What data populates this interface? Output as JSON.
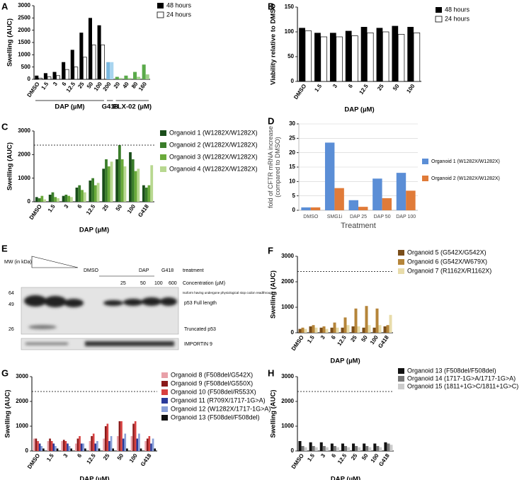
{
  "chart_data": [
    {
      "type": "bar",
      "panel": "A",
      "ylabel": "Swelling (AUC)",
      "groups": [
        {
          "label": "DAP (µM)",
          "categories": [
            "DMSO",
            "1.5",
            "3",
            "6",
            "12.5",
            "25",
            "50",
            "100"
          ]
        },
        {
          "label": "G418",
          "categories": [
            "200"
          ]
        },
        {
          "label": "ELX-02 (µM)",
          "categories": [
            "20",
            "40",
            "80",
            "160"
          ]
        }
      ],
      "series": [
        {
          "name": "48 hours",
          "color": "#000000",
          "values": [
            150,
            250,
            300,
            700,
            1200,
            1900,
            2500,
            2200,
            700,
            100,
            150,
            300,
            600
          ],
          "point_colors": [
            "#000000",
            "#000000",
            "#000000",
            "#000000",
            "#000000",
            "#000000",
            "#000000",
            "#000000",
            "#7ab8e0",
            "#5aaa4a",
            "#5aaa4a",
            "#5aaa4a",
            "#5aaa4a"
          ]
        },
        {
          "name": "24 hours",
          "color": "#ffffff",
          "values": [
            50,
            100,
            150,
            400,
            500,
            900,
            1400,
            1400,
            700,
            50,
            50,
            100,
            200
          ],
          "point_colors": [
            "#ffffff",
            "#ffffff",
            "#ffffff",
            "#ffffff",
            "#ffffff",
            "#ffffff",
            "#ffffff",
            "#ffffff",
            "#a8d4ef",
            "#9fd08a",
            "#9fd08a",
            "#9fd08a",
            "#9fd08a"
          ]
        }
      ],
      "ylim": [
        0,
        3000
      ],
      "yticks": [
        0,
        500,
        1000,
        1500,
        2000,
        2500,
        3000
      ],
      "legend": "upper right"
    },
    {
      "type": "bar",
      "panel": "B",
      "ylabel": "Viability relative to DMSO",
      "xlabel": "DAP (µM)",
      "categories": [
        "DMSO",
        "1.5",
        "3",
        "6",
        "12.5",
        "25",
        "50",
        "100"
      ],
      "series": [
        {
          "name": "48 hours",
          "color": "#000000",
          "values": [
            108,
            98,
            98,
            102,
            110,
            108,
            112,
            110
          ]
        },
        {
          "name": "24 hours",
          "color": "#ffffff",
          "values": [
            102,
            90,
            90,
            92,
            98,
            100,
            95,
            98
          ]
        }
      ],
      "ylim": [
        0,
        150
      ],
      "yticks": [
        0,
        50,
        100,
        150
      ],
      "legend": "upper right"
    },
    {
      "type": "bar",
      "panel": "C",
      "ylabel": "Swelling (AUC)",
      "xlabel": "DAP (µM)",
      "categories": [
        "DMSO",
        "1.5",
        "3",
        "6",
        "12.5",
        "25",
        "50",
        "100",
        "G418"
      ],
      "series": [
        {
          "name": "Organoid 1 (W1282X/W1282X)",
          "color": "#1a4d1a",
          "values": [
            200,
            300,
            250,
            600,
            900,
            1400,
            1800,
            2100,
            700
          ]
        },
        {
          "name": "Organoid 2 (W1282X/W1282X)",
          "color": "#3a7d2a",
          "values": [
            150,
            400,
            300,
            700,
            1000,
            1800,
            2400,
            1800,
            600
          ]
        },
        {
          "name": "Organoid 3 (W1282X/W1282X)",
          "color": "#6aaa3a",
          "values": [
            250,
            200,
            250,
            500,
            700,
            1500,
            1800,
            1300,
            700
          ]
        },
        {
          "name": "Organoid 4 (W1282X/W1282X)",
          "color": "#b8d890",
          "values": [
            100,
            150,
            200,
            400,
            800,
            1700,
            1500,
            1400,
            1550
          ]
        }
      ],
      "ylim": [
        0,
        3000
      ],
      "yticks": [
        0,
        1000,
        2000,
        3000
      ],
      "ref_line": 2400,
      "legend": "right"
    },
    {
      "type": "bar",
      "panel": "D",
      "ylabel": "fold of CFTR mRNA increase (compared to DMSO)",
      "xlabel": "Treatment",
      "categories": [
        "DMSO",
        "SMG1i",
        "DAP 25",
        "DAP 50",
        "DAP 100"
      ],
      "series": [
        {
          "name": "Organoid 1 (W1282X/W1282X)",
          "color": "#5b8ed6",
          "values": [
            1,
            23.5,
            3.5,
            11,
            13
          ]
        },
        {
          "name": "Organoid 2 (W1282X/W1282X)",
          "color": "#e07b39",
          "values": [
            1,
            7.7,
            1.2,
            4.2,
            6.8
          ]
        }
      ],
      "ylim": [
        0,
        30
      ],
      "yticks": [
        0,
        5,
        10,
        15,
        20,
        25,
        30
      ],
      "grid": true,
      "legend": "right"
    },
    {
      "type": "bar",
      "panel": "F",
      "ylabel": "Swelling (AUC)",
      "xlabel": "DAP (µM)",
      "categories": [
        "DMSO",
        "1.5",
        "3",
        "6",
        "12.5",
        "25",
        "50",
        "100",
        "G418"
      ],
      "series": [
        {
          "name": "Organoid 5 (G542X/G542X)",
          "color": "#7a4e1a",
          "values": [
            150,
            250,
            200,
            200,
            200,
            250,
            200,
            200,
            250
          ]
        },
        {
          "name": "Organoid 6 (G542X/W679X)",
          "color": "#b5853a",
          "values": [
            200,
            300,
            250,
            400,
            600,
            950,
            1050,
            950,
            300
          ]
        },
        {
          "name": "Organoid 7 (R1162X/R1162X)",
          "color": "#e8dcaa",
          "values": [
            150,
            200,
            150,
            200,
            300,
            250,
            300,
            300,
            700
          ]
        }
      ],
      "ylim": [
        0,
        3000
      ],
      "yticks": [
        0,
        1000,
        2000,
        3000
      ],
      "ref_line": 2400,
      "legend": "right"
    },
    {
      "type": "bar",
      "panel": "G",
      "ylabel": "Swelling (AUC)",
      "xlabel": "DAP (µM)",
      "categories": [
        "DMSO",
        "1.5",
        "3",
        "6",
        "12.5",
        "25",
        "50",
        "100",
        "G418"
      ],
      "series": [
        {
          "name": "Organoid 8 (F508del/G542X)",
          "color": "#e8a0a8",
          "values": [
            500,
            400,
            400,
            300,
            400,
            500,
            600,
            600,
            400
          ]
        },
        {
          "name": "Organoid 9 (F508del/G550X)",
          "color": "#8b1a1a",
          "values": [
            500,
            500,
            450,
            500,
            600,
            1000,
            1200,
            1100,
            500
          ]
        },
        {
          "name": "Organoid 10 (F508del/R553X)",
          "color": "#d84040",
          "values": [
            400,
            400,
            400,
            600,
            700,
            1100,
            1200,
            1200,
            600
          ]
        },
        {
          "name": "Organoid 11 (R709X/1717-1G>A)",
          "color": "#2a3a9a",
          "values": [
            300,
            300,
            300,
            300,
            300,
            400,
            500,
            500,
            300
          ]
        },
        {
          "name": "Organoid 12 (W1282X/1717-1G>A)",
          "color": "#8aa0d8",
          "values": [
            200,
            200,
            200,
            300,
            400,
            600,
            700,
            700,
            500
          ]
        },
        {
          "name": "Organoid 13 (F508del/F508del)",
          "color": "#111111",
          "values": [
            100,
            100,
            100,
            100,
            100,
            100,
            100,
            100,
            100
          ]
        }
      ],
      "ylim": [
        0,
        3000
      ],
      "yticks": [
        0,
        1000,
        2000,
        3000
      ],
      "ref_line": 2400,
      "legend": "right"
    },
    {
      "type": "bar",
      "panel": "H",
      "ylabel": "Swelling (AUC)",
      "xlabel": "DAP (µM)",
      "categories": [
        "DMSO",
        "1.5",
        "3",
        "6",
        "12.5",
        "25",
        "50",
        "100",
        "G418"
      ],
      "series": [
        {
          "name": "Organoid 13 (F508del/F508del)",
          "color": "#111111",
          "values": [
            400,
            350,
            350,
            300,
            300,
            300,
            300,
            300,
            350
          ]
        },
        {
          "name": "Organoid 14 (1717-1G>A/1717-1G>A)",
          "color": "#777777",
          "values": [
            200,
            200,
            200,
            200,
            200,
            200,
            200,
            200,
            300
          ]
        },
        {
          "name": "Organoid 15 (1811+1G>C/1811+1G>C)",
          "color": "#cccccc",
          "values": [
            150,
            150,
            150,
            150,
            150,
            150,
            150,
            150,
            250
          ]
        }
      ],
      "ylim": [
        0,
        3000
      ],
      "yticks": [
        0,
        1000,
        2000,
        3000
      ],
      "ref_line": 2400,
      "legend": "right"
    }
  ],
  "blot": {
    "panel": "E",
    "mw_label": "MW (in kDa)",
    "markers": [
      "64",
      "49",
      "26"
    ],
    "treatments": [
      "DMSO",
      "DAP",
      "G418"
    ],
    "treatment_label": "treatment",
    "concentrations": [
      "25",
      "50",
      "100",
      "600"
    ],
    "concentration_label": "Concentration (µM)",
    "bands": [
      "Isoform having undergone physiological stop codon readthrough",
      "p53 Full length",
      "Truncated p53",
      "IMPORTIN 9"
    ]
  }
}
